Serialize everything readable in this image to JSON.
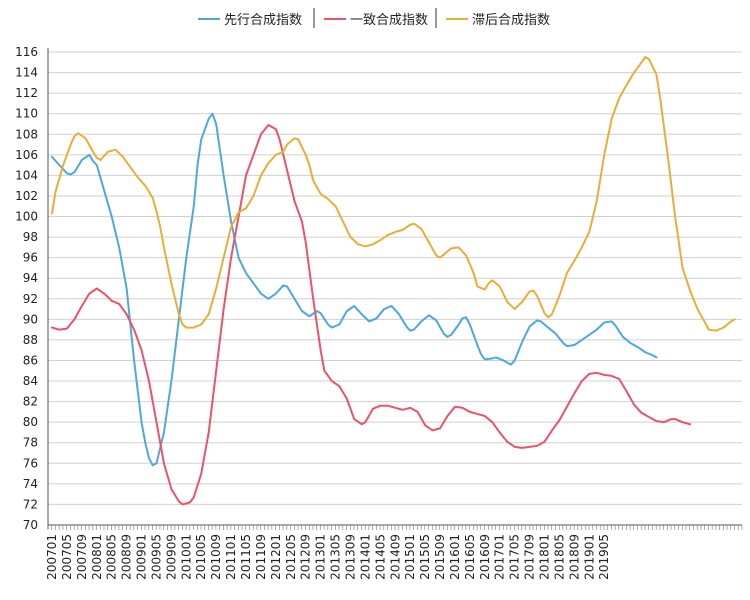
{
  "chart_data": {
    "type": "line",
    "title": "",
    "xlabel": "",
    "ylabel": "",
    "ylim": [
      70,
      116
    ],
    "yticks": [
      70,
      72,
      74,
      76,
      78,
      80,
      82,
      84,
      86,
      88,
      90,
      92,
      94,
      96,
      98,
      100,
      102,
      104,
      106,
      108,
      110,
      112,
      114,
      116
    ],
    "xtick_labels": [
      "200701",
      "200705",
      "200709",
      "200801",
      "200805",
      "200809",
      "200901",
      "200905",
      "200909",
      "201001",
      "201005",
      "201009",
      "201101",
      "201105",
      "201109",
      "201201",
      "201205",
      "201209",
      "201301",
      "201305",
      "201309",
      "201401",
      "201405",
      "201409",
      "201501",
      "201505",
      "201509",
      "201601",
      "201605",
      "201609",
      "201701",
      "201705",
      "201709",
      "201801",
      "201805",
      "201809",
      "201901",
      "201905"
    ],
    "grid": "horizontal",
    "legend": "top-center",
    "colors": {
      "leading": "#4fa8dc",
      "coincident": "#ea5468",
      "lagging": "#e8ae38",
      "grid": "#d0d0d0",
      "axis": "#555555"
    },
    "series": [
      {
        "name": "先行合成指数",
        "key": "leading",
        "points": [
          [
            0,
            105.8
          ],
          [
            2,
            105
          ],
          [
            4,
            104.2
          ],
          [
            5,
            104.1
          ],
          [
            6,
            104.3
          ],
          [
            8,
            105.5
          ],
          [
            10,
            106
          ],
          [
            11,
            105.4
          ],
          [
            12,
            105
          ],
          [
            14,
            102.5
          ],
          [
            16,
            100
          ],
          [
            18,
            97
          ],
          [
            20,
            93
          ],
          [
            22,
            86
          ],
          [
            24,
            80
          ],
          [
            25,
            78
          ],
          [
            26,
            76.5
          ],
          [
            27,
            75.8
          ],
          [
            28,
            76
          ],
          [
            30,
            79
          ],
          [
            32,
            84
          ],
          [
            34,
            90
          ],
          [
            36,
            96
          ],
          [
            38,
            101
          ],
          [
            39,
            105
          ],
          [
            40,
            107.5
          ],
          [
            42,
            109.5
          ],
          [
            43,
            110
          ],
          [
            44,
            109
          ],
          [
            46,
            104
          ],
          [
            48,
            99.5
          ],
          [
            50,
            96
          ],
          [
            52,
            94.5
          ],
          [
            54,
            93.5
          ],
          [
            56,
            92.5
          ],
          [
            58,
            92
          ],
          [
            60,
            92.5
          ],
          [
            62,
            93.3
          ],
          [
            63,
            93.2
          ],
          [
            65,
            92
          ],
          [
            67,
            90.8
          ],
          [
            69,
            90.3
          ],
          [
            71,
            90.8
          ],
          [
            72,
            90.6
          ],
          [
            74,
            89.5
          ],
          [
            75,
            89.2
          ],
          [
            77,
            89.5
          ],
          [
            79,
            90.8
          ],
          [
            81,
            91.3
          ],
          [
            83,
            90.5
          ],
          [
            85,
            89.8
          ],
          [
            87,
            90.1
          ],
          [
            89,
            91
          ],
          [
            91,
            91.3
          ],
          [
            93,
            90.5
          ],
          [
            95,
            89.3
          ],
          [
            96,
            88.9
          ],
          [
            97,
            89
          ],
          [
            99,
            89.8
          ],
          [
            101,
            90.4
          ],
          [
            103,
            89.9
          ],
          [
            105,
            88.6
          ],
          [
            106,
            88.3
          ],
          [
            107,
            88.5
          ],
          [
            109,
            89.5
          ],
          [
            110,
            90.1
          ],
          [
            111,
            90.2
          ],
          [
            112,
            89.5
          ],
          [
            114,
            87.5
          ],
          [
            115,
            86.6
          ],
          [
            116,
            86.1
          ],
          [
            118,
            86.2
          ],
          [
            119,
            86.3
          ],
          [
            121,
            86
          ],
          [
            123,
            85.6
          ],
          [
            124,
            86
          ],
          [
            126,
            87.8
          ],
          [
            128,
            89.3
          ],
          [
            130,
            89.9
          ],
          [
            131,
            89.8
          ],
          [
            133,
            89.2
          ],
          [
            135,
            88.6
          ],
          [
            137,
            87.7
          ],
          [
            138,
            87.4
          ],
          [
            140,
            87.5
          ],
          [
            142,
            88
          ],
          [
            144,
            88.5
          ],
          [
            146,
            89
          ],
          [
            148,
            89.7
          ],
          [
            150,
            89.8
          ],
          [
            151,
            89.4
          ],
          [
            153,
            88.3
          ],
          [
            155,
            87.7
          ],
          [
            157,
            87.3
          ],
          [
            159,
            86.8
          ],
          [
            161,
            86.5
          ],
          [
            162,
            86.3
          ]
        ]
      },
      {
        "name": "一致合成指数",
        "key": "coincident",
        "points": [
          [
            0,
            89.2
          ],
          [
            2,
            89
          ],
          [
            4,
            89.1
          ],
          [
            6,
            90
          ],
          [
            8,
            91.3
          ],
          [
            10,
            92.5
          ],
          [
            12,
            93
          ],
          [
            14,
            92.5
          ],
          [
            16,
            91.8
          ],
          [
            18,
            91.5
          ],
          [
            20,
            90.5
          ],
          [
            22,
            89
          ],
          [
            24,
            87
          ],
          [
            26,
            84
          ],
          [
            28,
            80
          ],
          [
            30,
            76
          ],
          [
            32,
            73.5
          ],
          [
            34,
            72.3
          ],
          [
            35,
            72
          ],
          [
            37,
            72.2
          ],
          [
            38,
            72.7
          ],
          [
            40,
            75
          ],
          [
            42,
            79
          ],
          [
            44,
            85
          ],
          [
            46,
            91
          ],
          [
            48,
            96
          ],
          [
            50,
            100
          ],
          [
            52,
            104
          ],
          [
            54,
            106
          ],
          [
            56,
            108
          ],
          [
            58,
            108.9
          ],
          [
            60,
            108.5
          ],
          [
            61,
            107.5
          ],
          [
            63,
            104.5
          ],
          [
            65,
            101.5
          ],
          [
            67,
            99.5
          ],
          [
            68,
            97.5
          ],
          [
            70,
            92
          ],
          [
            72,
            87
          ],
          [
            73,
            85
          ],
          [
            75,
            84
          ],
          [
            77,
            83.5
          ],
          [
            79,
            82.3
          ],
          [
            81,
            80.3
          ],
          [
            83,
            79.8
          ],
          [
            84,
            80
          ],
          [
            86,
            81.3
          ],
          [
            88,
            81.6
          ],
          [
            90,
            81.6
          ],
          [
            92,
            81.4
          ],
          [
            94,
            81.2
          ],
          [
            96,
            81.4
          ],
          [
            98,
            81
          ],
          [
            100,
            79.7
          ],
          [
            102,
            79.2
          ],
          [
            104,
            79.4
          ],
          [
            106,
            80.6
          ],
          [
            108,
            81.5
          ],
          [
            110,
            81.4
          ],
          [
            112,
            81
          ],
          [
            114,
            80.8
          ],
          [
            116,
            80.6
          ],
          [
            118,
            80
          ],
          [
            120,
            79
          ],
          [
            122,
            78.1
          ],
          [
            124,
            77.6
          ],
          [
            126,
            77.5
          ],
          [
            128,
            77.6
          ],
          [
            130,
            77.7
          ],
          [
            132,
            78.1
          ],
          [
            134,
            79.2
          ],
          [
            136,
            80.2
          ],
          [
            138,
            81.5
          ],
          [
            140,
            82.8
          ],
          [
            142,
            84
          ],
          [
            144,
            84.7
          ],
          [
            146,
            84.8
          ],
          [
            148,
            84.6
          ],
          [
            150,
            84.5
          ],
          [
            152,
            84.2
          ],
          [
            154,
            83
          ],
          [
            156,
            81.7
          ],
          [
            158,
            80.9
          ],
          [
            160,
            80.5
          ],
          [
            162,
            80.1
          ],
          [
            164,
            80
          ],
          [
            166,
            80.3
          ],
          [
            167,
            80.3
          ],
          [
            169,
            80
          ],
          [
            171,
            79.8
          ]
        ]
      },
      {
        "name": "滞后合成指数",
        "key": "lagging",
        "points": [
          [
            0,
            100.3
          ],
          [
            1,
            102.5
          ],
          [
            3,
            105
          ],
          [
            5,
            107
          ],
          [
            6,
            107.8
          ],
          [
            7,
            108.1
          ],
          [
            9,
            107.6
          ],
          [
            11,
            106.3
          ],
          [
            12,
            105.7
          ],
          [
            13,
            105.5
          ],
          [
            15,
            106.3
          ],
          [
            17,
            106.5
          ],
          [
            19,
            105.8
          ],
          [
            21,
            104.8
          ],
          [
            23,
            103.8
          ],
          [
            25,
            103
          ],
          [
            27,
            101.8
          ],
          [
            28,
            100.5
          ],
          [
            29,
            99
          ],
          [
            30,
            97
          ],
          [
            32,
            93.5
          ],
          [
            34,
            90.5
          ],
          [
            35,
            89.5
          ],
          [
            36,
            89.2
          ],
          [
            38,
            89.2
          ],
          [
            40,
            89.5
          ],
          [
            42,
            90.5
          ],
          [
            44,
            93
          ],
          [
            46,
            96
          ],
          [
            48,
            99
          ],
          [
            50,
            100.4
          ],
          [
            52,
            100.8
          ],
          [
            54,
            102
          ],
          [
            56,
            104
          ],
          [
            58,
            105.2
          ],
          [
            60,
            106
          ],
          [
            62,
            106.3
          ],
          [
            63,
            107
          ],
          [
            65,
            107.6
          ],
          [
            66,
            107.5
          ],
          [
            68,
            106
          ],
          [
            69,
            105
          ],
          [
            70,
            103.5
          ],
          [
            72,
            102.2
          ],
          [
            74,
            101.7
          ],
          [
            76,
            101
          ],
          [
            78,
            99.5
          ],
          [
            80,
            98
          ],
          [
            82,
            97.3
          ],
          [
            84,
            97.1
          ],
          [
            86,
            97.3
          ],
          [
            88,
            97.7
          ],
          [
            90,
            98.2
          ],
          [
            92,
            98.5
          ],
          [
            94,
            98.7
          ],
          [
            96,
            99.2
          ],
          [
            97,
            99.3
          ],
          [
            99,
            98.8
          ],
          [
            101,
            97.5
          ],
          [
            103,
            96.2
          ],
          [
            104,
            96
          ],
          [
            105,
            96.3
          ],
          [
            107,
            96.9
          ],
          [
            109,
            97
          ],
          [
            111,
            96.2
          ],
          [
            113,
            94.5
          ],
          [
            114,
            93.2
          ],
          [
            116,
            92.9
          ],
          [
            117,
            93.5
          ],
          [
            118,
            93.8
          ],
          [
            120,
            93.2
          ],
          [
            122,
            91.7
          ],
          [
            124,
            91
          ],
          [
            126,
            91.7
          ],
          [
            128,
            92.7
          ],
          [
            129,
            92.8
          ],
          [
            130,
            92.3
          ],
          [
            132,
            90.6
          ],
          [
            133,
            90.2
          ],
          [
            134,
            90.5
          ],
          [
            136,
            92.3
          ],
          [
            138,
            94.5
          ],
          [
            140,
            95.7
          ],
          [
            142,
            97
          ],
          [
            144,
            98.5
          ],
          [
            146,
            101.5
          ],
          [
            148,
            106
          ],
          [
            150,
            109.5
          ],
          [
            152,
            111.5
          ],
          [
            154,
            112.8
          ],
          [
            156,
            114
          ],
          [
            158,
            115
          ],
          [
            159,
            115.5
          ],
          [
            160,
            115.3
          ],
          [
            162,
            113.8
          ],
          [
            163,
            111.5
          ],
          [
            165,
            106
          ],
          [
            167,
            100
          ],
          [
            169,
            95
          ],
          [
            171,
            92.8
          ],
          [
            173,
            91
          ],
          [
            175,
            89.7
          ],
          [
            176,
            89
          ],
          [
            178,
            88.9
          ],
          [
            180,
            89.2
          ],
          [
            182,
            89.8
          ],
          [
            183,
            90
          ]
        ]
      }
    ]
  }
}
